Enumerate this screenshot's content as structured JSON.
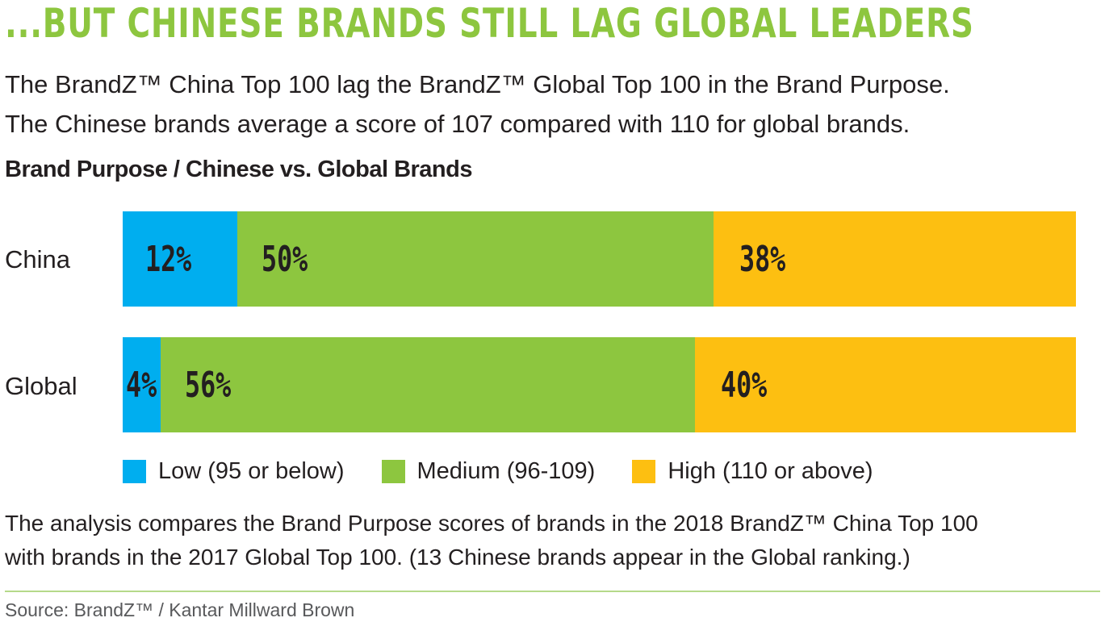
{
  "headline": "...BUT CHINESE BRANDS STILL LAG GLOBAL LEADERS",
  "intro": {
    "line1": "The BrandZ™ China Top 100 lag the BrandZ™ Global Top 100 in the Brand Purpose.",
    "line2": "The Chinese brands average a score of 107 compared with 110 for global brands."
  },
  "colors": {
    "accent": "#8dc63f",
    "low": "#00aeef",
    "medium": "#8dc63f",
    "high": "#fdbf11"
  },
  "chart_data": {
    "type": "bar",
    "orientation": "horizontal",
    "stacked": true,
    "title": "Brand Purpose / Chinese vs. Global Brands",
    "categories": [
      "China",
      "Global"
    ],
    "series": [
      {
        "name": "Low (95 or below)",
        "values": [
          12,
          4
        ],
        "labels": [
          "12%",
          "4%"
        ],
        "color": "#00aeef"
      },
      {
        "name": "Medium (96-109)",
        "values": [
          50,
          56
        ],
        "labels": [
          "50%",
          "56%"
        ],
        "color": "#8dc63f"
      },
      {
        "name": "High (110 or above)",
        "values": [
          38,
          40
        ],
        "labels": [
          "38%",
          "40%"
        ],
        "color": "#fdbf11"
      }
    ],
    "legend": "bottom"
  },
  "note": {
    "line1": "The analysis compares the Brand Purpose scores of brands in the 2018 BrandZ™ China Top 100",
    "line2": "with brands in the 2017 Global Top 100. (13 Chinese brands appear in the Global ranking.)"
  },
  "source": "Source: BrandZ™ / Kantar Millward Brown"
}
